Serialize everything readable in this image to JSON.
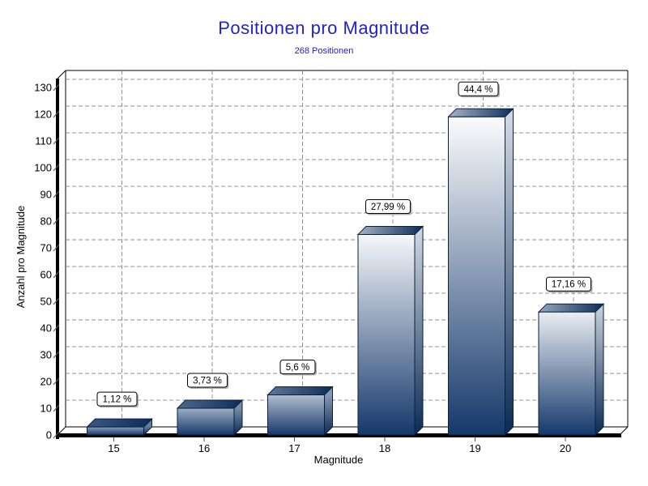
{
  "chart_data": {
    "type": "bar",
    "title": "Positionen pro Magnitude",
    "subtitle": "268 Positionen",
    "xlabel": "Magnitude",
    "ylabel": "Anzahl pro Magnitude",
    "categories": [
      "15",
      "16",
      "17",
      "18",
      "19",
      "20"
    ],
    "values": [
      3,
      10,
      15,
      75,
      119,
      46
    ],
    "bar_labels": [
      "1,12 %",
      "3,73 %",
      "5,6 %",
      "27,99 %",
      "44,4 %",
      "17,16 %"
    ],
    "total_positions": 268,
    "ylim": [
      0,
      130
    ],
    "ytick_step": 10,
    "grid": true,
    "style_3d": true,
    "legend": "none",
    "colors": {
      "title": "#2222CC",
      "bar_dark": "#15386B",
      "bar_light": "#FFFFFF",
      "bar_outline": "#0A1F3C",
      "grid": "#909090",
      "axis": "#000000",
      "tick": "#555555",
      "label_box_bg": "#FFFFFF",
      "label_box_border": "#000000",
      "label_box_shadow": "#B0B0B0"
    }
  }
}
